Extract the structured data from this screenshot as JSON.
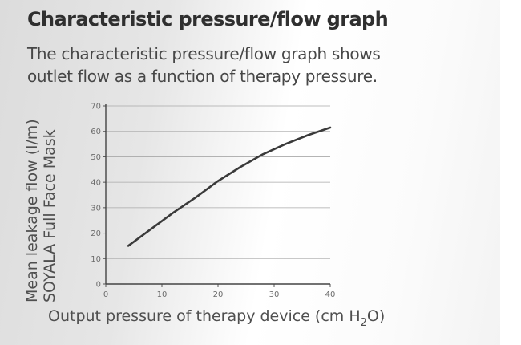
{
  "page": {
    "heading": "Characteristic pressure/flow graph",
    "description_lines": [
      "The characteristic pressure/flow graph shows",
      "outlet flow as a function of therapy pressure."
    ]
  },
  "chart_data": {
    "type": "line",
    "title": "Characteristic pressure/flow graph",
    "ylabel_lines": [
      "Mean leakage flow (l/m)",
      "SOYALA Full Face Mask"
    ],
    "xlabel": {
      "text": "Output pressure of therapy device (cm H",
      "sub": "2",
      "tail": "O)"
    },
    "xlim": [
      0,
      40
    ],
    "ylim": [
      0,
      70
    ],
    "xticks": [
      0,
      10,
      20,
      30,
      40
    ],
    "yticks": [
      0,
      10,
      20,
      30,
      40,
      50,
      60,
      70
    ],
    "grid": {
      "horizontal": true,
      "vertical": false
    },
    "series": [
      {
        "color": "#3a3a3a",
        "points": [
          [
            4,
            15
          ],
          [
            8,
            21.5
          ],
          [
            12,
            28
          ],
          [
            16,
            34
          ],
          [
            20,
            40.5
          ],
          [
            24,
            46
          ],
          [
            28,
            51
          ],
          [
            32,
            55
          ],
          [
            36,
            58.5
          ],
          [
            40,
            61.5
          ]
        ]
      }
    ]
  }
}
